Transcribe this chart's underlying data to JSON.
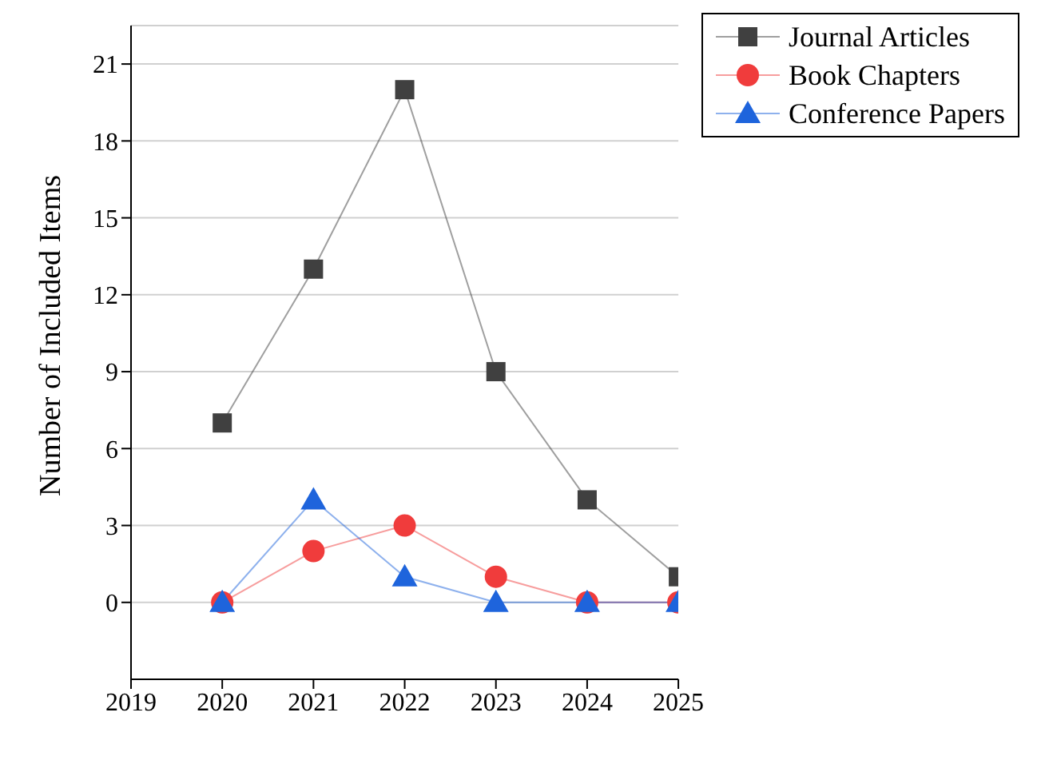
{
  "chart_data": {
    "type": "line",
    "xlabel": null,
    "ylabel": "Number of Included Items",
    "x": [
      2020,
      2021,
      2022,
      2023,
      2024,
      2025
    ],
    "series": [
      {
        "name": "Journal Articles",
        "color": "#404040",
        "marker": "square",
        "values": [
          7,
          13,
          20,
          9,
          4,
          1
        ]
      },
      {
        "name": "Book Chapters",
        "color": "#f03c3c",
        "marker": "circle",
        "values": [
          0,
          2,
          3,
          1,
          0,
          0
        ]
      },
      {
        "name": "Conference Papers",
        "color": "#1e64dc",
        "marker": "triangle",
        "values": [
          0,
          4,
          1,
          0,
          0,
          0
        ]
      }
    ],
    "xlim": [
      2019,
      2025
    ],
    "xticks": [
      2019,
      2020,
      2021,
      2022,
      2023,
      2024,
      2025
    ],
    "ylim": [
      -3,
      22.5
    ],
    "yticks": [
      0,
      3,
      6,
      9,
      12,
      15,
      18,
      21
    ],
    "grid": "y",
    "legend": "top right"
  }
}
